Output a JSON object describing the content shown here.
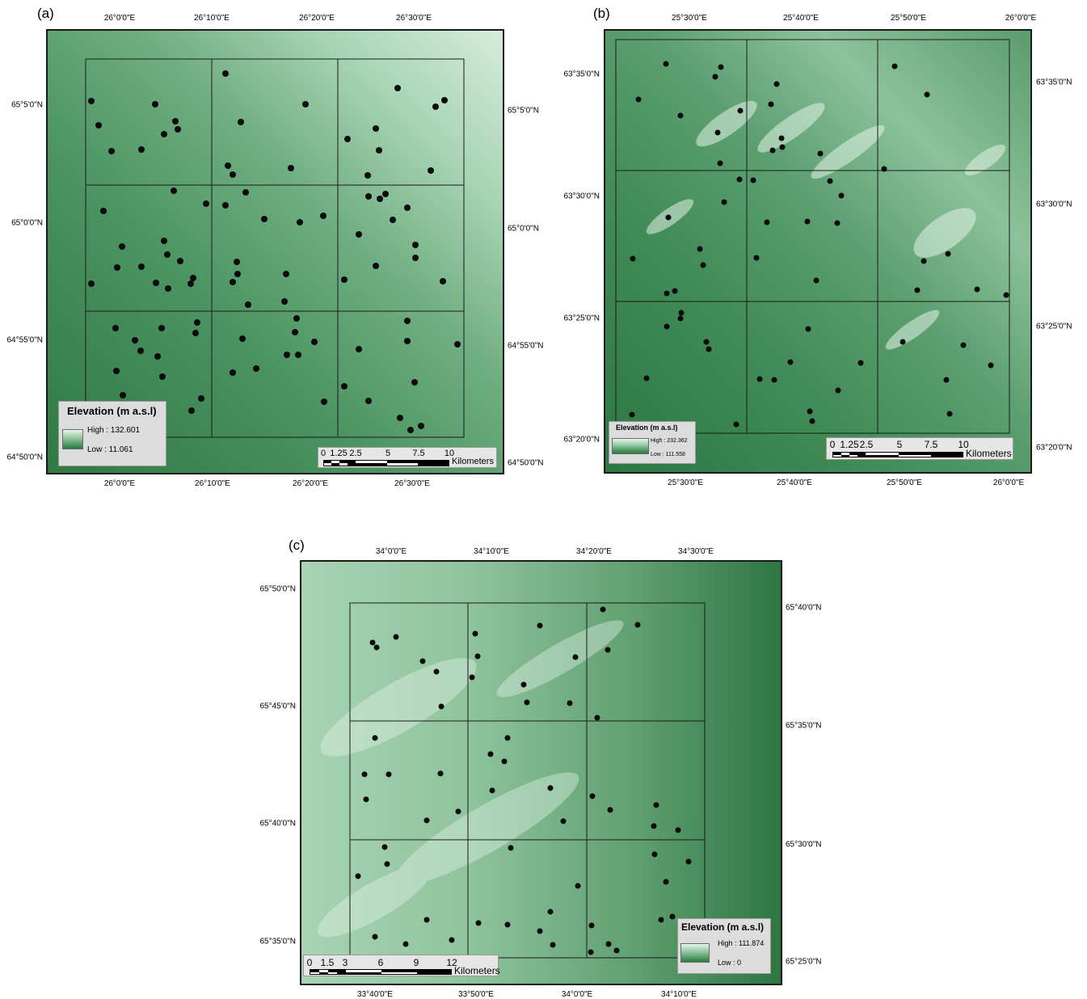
{
  "panels": [
    {
      "id": "a",
      "label": "(a)",
      "top_ticks": [
        "26°0'0\"E",
        "26°10'0\"E",
        "26°20'0\"E",
        "26°30'0\"E"
      ],
      "bottom_ticks": [
        "26°0'0\"E",
        "26°10'0\"E",
        "26°20'0\"E",
        "26°30'0\"E"
      ],
      "left_ticks": [
        "65°5'0\"N",
        "65°0'0\"N",
        "64°55'0\"N",
        "64°50'0\"N"
      ],
      "right_ticks": [
        "65°5'0\"N",
        "65°0'0\"N",
        "64°55'0\"N",
        "64°50'0\"N"
      ],
      "legend": {
        "title": "Elevation (m a.s.l)",
        "high": "High : 132.601",
        "low": "Low : 11.061"
      },
      "scalebar": {
        "labels": [
          "0",
          "1.25",
          "2.5",
          "5",
          "7.5",
          "10"
        ],
        "unit": "Kilometers"
      }
    },
    {
      "id": "b",
      "label": "(b)",
      "top_ticks": [
        "25°30'0\"E",
        "25°40'0\"E",
        "25°50'0\"E",
        "26°0'0\"E"
      ],
      "bottom_ticks": [
        "25°30'0\"E",
        "25°40'0\"E",
        "25°50'0\"E",
        "26°0'0\"E"
      ],
      "left_ticks": [
        "63°35'0\"N",
        "63°30'0\"N",
        "63°25'0\"N",
        "63°20'0\"N"
      ],
      "right_ticks": [
        "63°35'0\"N",
        "63°30'0\"N",
        "63°25'0\"N",
        "63°20'0\"N"
      ],
      "legend": {
        "title": "Elevation (m a.s.l)",
        "high": "High : 232.362",
        "low": "Low : 111.558"
      },
      "scalebar": {
        "labels": [
          "0",
          "1.25",
          "2.5",
          "5",
          "7.5",
          "10"
        ],
        "unit": "Kilometers"
      }
    },
    {
      "id": "c",
      "label": "(c)",
      "top_ticks": [
        "34°0'0\"E",
        "34°10'0\"E",
        "34°20'0\"E",
        "34°30'0\"E"
      ],
      "bottom_ticks": [
        "33°40'0\"E",
        "33°50'0\"E",
        "34°0'0\"E",
        "34°10'0\"E"
      ],
      "left_ticks": [
        "65°50'0\"N",
        "65°45'0\"N",
        "65°40'0\"N",
        "65°35'0\"N"
      ],
      "right_ticks": [
        "65°40'0\"N",
        "65°35'0\"N",
        "65°30'0\"N",
        "65°25'0\"N"
      ],
      "legend": {
        "title": "Elevation (m a.s.l)",
        "high": "High : 111.874",
        "low": "Low : 0"
      },
      "scalebar": {
        "labels": [
          "0",
          "1.5",
          "3",
          "6",
          "9",
          "12"
        ],
        "unit": "Kilometers"
      }
    }
  ]
}
